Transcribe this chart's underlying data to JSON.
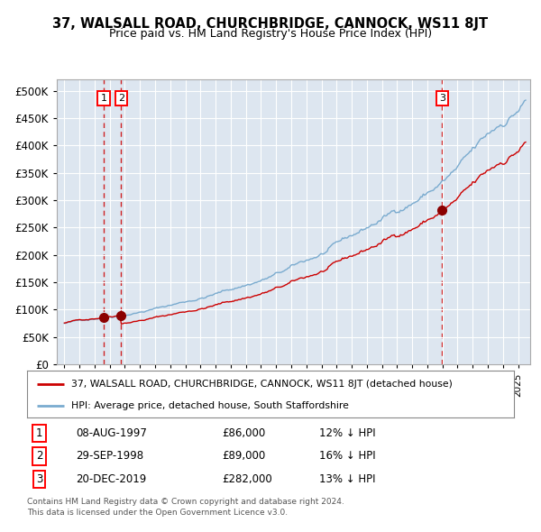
{
  "title": "37, WALSALL ROAD, CHURCHBRIDGE, CANNOCK, WS11 8JT",
  "subtitle": "Price paid vs. HM Land Registry's House Price Index (HPI)",
  "legend_property": "37, WALSALL ROAD, CHURCHBRIDGE, CANNOCK, WS11 8JT (detached house)",
  "legend_hpi": "HPI: Average price, detached house, South Staffordshire",
  "footnote1": "Contains HM Land Registry data © Crown copyright and database right 2024.",
  "footnote2": "This data is licensed under the Open Government Licence v3.0.",
  "transactions": [
    {
      "num": 1,
      "date": "08-AUG-1997",
      "price": "£86,000",
      "change": "12% ↓ HPI",
      "year": 1997.6
    },
    {
      "num": 2,
      "date": "29-SEP-1998",
      "price": "£89,000",
      "change": "16% ↓ HPI",
      "year": 1998.75
    },
    {
      "num": 3,
      "date": "20-DEC-2019",
      "price": "£282,000",
      "change": "13% ↓ HPI",
      "year": 2019.97
    }
  ],
  "property_color": "#cc0000",
  "hpi_color": "#7aabcf",
  "dashed_color": "#cc0000",
  "background_plot": "#dde6f0",
  "background_fig": "#ffffff",
  "ylim": [
    0,
    520000
  ],
  "yticks": [
    0,
    50000,
    100000,
    150000,
    200000,
    250000,
    300000,
    350000,
    400000,
    450000,
    500000
  ],
  "xlim_start": 1994.5,
  "xlim_end": 2025.8,
  "sale1_year": 1997.6,
  "sale1_price": 86000,
  "sale2_year": 1998.75,
  "sale2_price": 89000,
  "sale3_year": 2019.97,
  "sale3_price": 282000
}
